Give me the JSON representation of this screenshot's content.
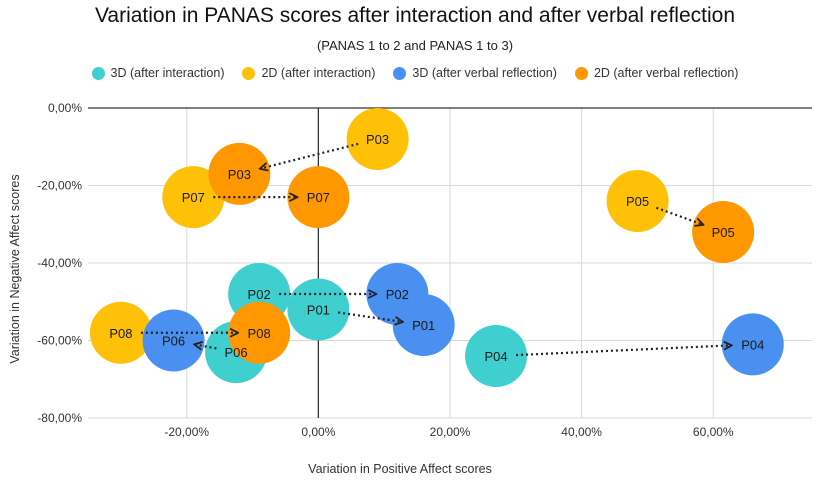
{
  "chart_data": {
    "type": "scatter",
    "title": "Variation in PANAS scores after interaction and after verbal reflection",
    "subtitle": "(PANAS 1 to 2 and PANAS 1 to 3)",
    "xlabel": "Variation in Positive Affect scores",
    "ylabel": "Variation in Negative Affect scores",
    "xlim": [
      -35,
      75
    ],
    "ylim": [
      -80,
      0
    ],
    "x_ticks": [
      {
        "value": -20,
        "label": "-20,00%"
      },
      {
        "value": 0,
        "label": "0,00%"
      },
      {
        "value": 20,
        "label": "20,00%"
      },
      {
        "value": 40,
        "label": "40,00%"
      },
      {
        "value": 60,
        "label": "60,00%"
      }
    ],
    "y_ticks": [
      {
        "value": 0,
        "label": "0,00%"
      },
      {
        "value": -20,
        "label": "-20,00%"
      },
      {
        "value": -40,
        "label": "-40,00%"
      },
      {
        "value": -60,
        "label": "-60,00%"
      },
      {
        "value": -80,
        "label": "-80,00%"
      }
    ],
    "grid": true,
    "legend_position": "top",
    "series": [
      {
        "name": "3D (after interaction)",
        "color": "#3fcfcf",
        "points": [
          {
            "label": "P02",
            "x": -9,
            "y": -48
          },
          {
            "label": "P01",
            "x": 0,
            "y": -52
          },
          {
            "label": "P06",
            "x": -12.5,
            "y": -63
          },
          {
            "label": "P04",
            "x": 27,
            "y": -64
          }
        ]
      },
      {
        "name": "2D (after interaction)",
        "color": "#ffc107",
        "points": [
          {
            "label": "P03",
            "x": 9,
            "y": -8
          },
          {
            "label": "P07",
            "x": -19,
            "y": -23
          },
          {
            "label": "P05",
            "x": 48.5,
            "y": -24
          },
          {
            "label": "P08",
            "x": -30,
            "y": -58
          }
        ]
      },
      {
        "name": "3D (after verbal reflection)",
        "color": "#4a90f0",
        "points": [
          {
            "label": "P02",
            "x": 12,
            "y": -48
          },
          {
            "label": "P01",
            "x": 16,
            "y": -56
          },
          {
            "label": "P06",
            "x": -22,
            "y": -60
          },
          {
            "label": "P04",
            "x": 66,
            "y": -61
          }
        ]
      },
      {
        "name": "2D (after verbal reflection)",
        "color": "#ff9800",
        "points": [
          {
            "label": "P03",
            "x": -12,
            "y": -17
          },
          {
            "label": "P07",
            "x": 0,
            "y": -23
          },
          {
            "label": "P05",
            "x": 61.5,
            "y": -32
          },
          {
            "label": "P08",
            "x": -9,
            "y": -58
          }
        ]
      }
    ],
    "arrows": [
      {
        "from": [
          9,
          -8
        ],
        "to": [
          -12,
          -17
        ]
      },
      {
        "from": [
          -19,
          -23
        ],
        "to": [
          0,
          -23
        ]
      },
      {
        "from": [
          48.5,
          -24
        ],
        "to": [
          61.5,
          -32
        ]
      },
      {
        "from": [
          -9,
          -48
        ],
        "to": [
          12,
          -48
        ]
      },
      {
        "from": [
          0,
          -52
        ],
        "to": [
          16,
          -56
        ]
      },
      {
        "from": [
          -30,
          -58
        ],
        "to": [
          -9,
          -58
        ]
      },
      {
        "from": [
          -12.5,
          -63
        ],
        "to": [
          -22,
          -60
        ]
      },
      {
        "from": [
          27,
          -64
        ],
        "to": [
          66,
          -61
        ]
      }
    ]
  }
}
